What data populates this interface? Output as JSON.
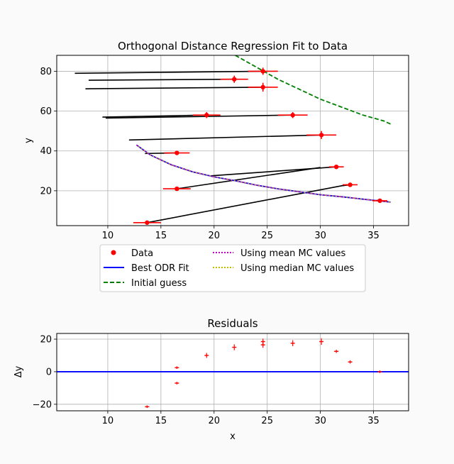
{
  "chart_data": [
    {
      "type": "scatter",
      "title": "Orthogonal Distance Regression Fit to Data",
      "xlabel": "",
      "ylabel": "y",
      "xlim": [
        5.2,
        38.3
      ],
      "ylim": [
        2.5,
        88
      ],
      "xticks": [
        10,
        15,
        20,
        25,
        30,
        35
      ],
      "yticks": [
        20,
        40,
        60,
        80
      ],
      "grid": true,
      "legend_position": "bottom",
      "legend": [
        {
          "label": "Data",
          "style": "marker",
          "color": "#ff0000"
        },
        {
          "label": "Best ODR Fit",
          "style": "solid",
          "color": "#0000ff"
        },
        {
          "label": "Initial guess",
          "style": "dashed",
          "color": "#008000"
        },
        {
          "label": "Using mean MC values",
          "style": "dotted",
          "color": "#bf00bf"
        },
        {
          "label": "Using median MC values",
          "style": "dotted",
          "color": "#bfbf00"
        }
      ],
      "points": [
        {
          "x": 13.7,
          "y": 4,
          "xerr": 1.3,
          "yerr": 0.5
        },
        {
          "x": 16.5,
          "y": 21,
          "xerr": 1.3,
          "yerr": 0.7
        },
        {
          "x": 16.5,
          "y": 39,
          "xerr": 1.2,
          "yerr": 0.7
        },
        {
          "x": 19.3,
          "y": 58,
          "xerr": 1.3,
          "yerr": 1.5
        },
        {
          "x": 21.9,
          "y": 76,
          "xerr": 1.3,
          "yerr": 1.8
        },
        {
          "x": 24.6,
          "y": 72,
          "xerr": 1.4,
          "yerr": 2.2
        },
        {
          "x": 24.6,
          "y": 80,
          "xerr": 1.4,
          "yerr": 1.8
        },
        {
          "x": 27.4,
          "y": 58,
          "xerr": 1.4,
          "yerr": 1.5
        },
        {
          "x": 30.1,
          "y": 48,
          "xerr": 1.4,
          "yerr": 2.0
        },
        {
          "x": 31.5,
          "y": 32,
          "xerr": 0.7,
          "yerr": 0.7
        },
        {
          "x": 32.8,
          "y": 23,
          "xerr": 0.7,
          "yerr": 0.6
        },
        {
          "x": 35.6,
          "y": 15,
          "xerr": 0.7,
          "yerr": 0.5
        }
      ],
      "deviation_lines": [
        [
          [
            13.7,
            4
          ],
          [
            32.5,
            23
          ]
        ],
        [
          [
            16.5,
            21
          ],
          [
            30.0,
            31.7
          ]
        ],
        [
          [
            16.5,
            39
          ],
          [
            13.5,
            38.7
          ]
        ],
        [
          [
            19.3,
            58
          ],
          [
            9.5,
            57
          ]
        ],
        [
          [
            21.9,
            76
          ],
          [
            8.2,
            75.5
          ]
        ],
        [
          [
            24.6,
            72
          ],
          [
            7.9,
            71.2
          ]
        ],
        [
          [
            24.6,
            80
          ],
          [
            6.9,
            79
          ]
        ],
        [
          [
            27.4,
            58
          ],
          [
            9.8,
            56.5
          ]
        ],
        [
          [
            30.1,
            48
          ],
          [
            12.0,
            45.5
          ]
        ],
        [
          [
            31.5,
            32
          ],
          [
            19.7,
            27.5
          ]
        ],
        [
          [
            32.8,
            23
          ],
          [
            32.0,
            22.5
          ]
        ],
        [
          [
            35.6,
            15
          ],
          [
            35.3,
            15.2
          ]
        ]
      ],
      "fit_curve": [
        [
          12.7,
          43
        ],
        [
          14,
          38
        ],
        [
          16,
          33
        ],
        [
          18,
          29.5
        ],
        [
          20,
          27
        ],
        [
          22,
          25
        ],
        [
          24,
          22.8
        ],
        [
          26,
          21
        ],
        [
          28,
          19.5
        ],
        [
          30,
          18
        ],
        [
          32,
          17
        ],
        [
          34,
          15.8
        ],
        [
          36.6,
          14.3
        ]
      ],
      "initial_guess_curve": [
        [
          22,
          88
        ],
        [
          24,
          82
        ],
        [
          26,
          76
        ],
        [
          28,
          71
        ],
        [
          30,
          66
        ],
        [
          32,
          62
        ],
        [
          34,
          58
        ],
        [
          36,
          55
        ],
        [
          36.6,
          53.5
        ]
      ]
    },
    {
      "type": "scatter",
      "title": "Residuals",
      "xlabel": "x",
      "ylabel": "Δy",
      "xlim": [
        5.2,
        38.3
      ],
      "ylim": [
        -24,
        23.5
      ],
      "xticks": [
        10,
        15,
        20,
        25,
        30,
        35
      ],
      "yticks": [
        -20,
        0,
        20
      ],
      "grid": true,
      "zero_line_color": "#0000ff",
      "residuals": [
        {
          "x": 13.7,
          "y": -21.5,
          "yerr": 0.8
        },
        {
          "x": 16.5,
          "y": -7,
          "yerr": 0.8
        },
        {
          "x": 16.5,
          "y": 2.5,
          "yerr": 0.8
        },
        {
          "x": 19.3,
          "y": 10,
          "yerr": 1.5
        },
        {
          "x": 21.9,
          "y": 15,
          "yerr": 1.8
        },
        {
          "x": 24.6,
          "y": 16.5,
          "yerr": 1.8
        },
        {
          "x": 24.6,
          "y": 18.5,
          "yerr": 1.8
        },
        {
          "x": 27.4,
          "y": 17.5,
          "yerr": 1.8
        },
        {
          "x": 30.1,
          "y": 18.5,
          "yerr": 2.0
        },
        {
          "x": 31.5,
          "y": 12.5,
          "yerr": 1.0
        },
        {
          "x": 32.8,
          "y": 6,
          "yerr": 1.0
        },
        {
          "x": 35.6,
          "y": 0,
          "yerr": 0.8
        }
      ]
    }
  ]
}
